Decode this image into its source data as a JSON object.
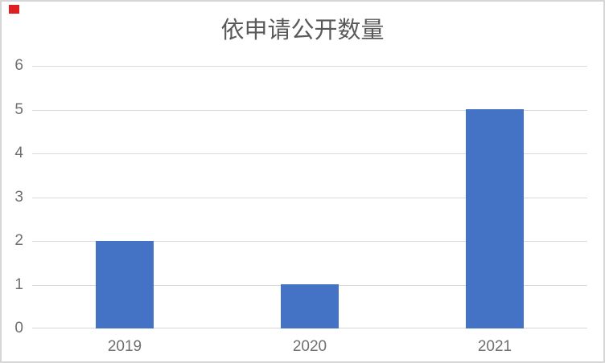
{
  "page": {
    "background": "#ffffff",
    "border_color": "#d6d6d6"
  },
  "marker": {
    "color": "#e02020"
  },
  "chart_data": {
    "type": "bar",
    "title": "依申请公开数量",
    "categories": [
      "2019",
      "2020",
      "2021"
    ],
    "values": [
      2,
      1,
      5
    ],
    "series": [
      {
        "name": "依申请公开数量",
        "values": [
          2,
          1,
          5
        ]
      }
    ],
    "xlabel": "",
    "ylabel": "",
    "ylim": [
      0,
      6
    ],
    "yticks": [
      0,
      1,
      2,
      3,
      4,
      5,
      6
    ],
    "grid": true,
    "legend": false,
    "bar_color": "#4472c4",
    "gridline_color": "#d9d9d9",
    "axis_line_color": "#d6d6d6",
    "tick_label_color": "#6f6f6f",
    "title_color": "#595959"
  }
}
